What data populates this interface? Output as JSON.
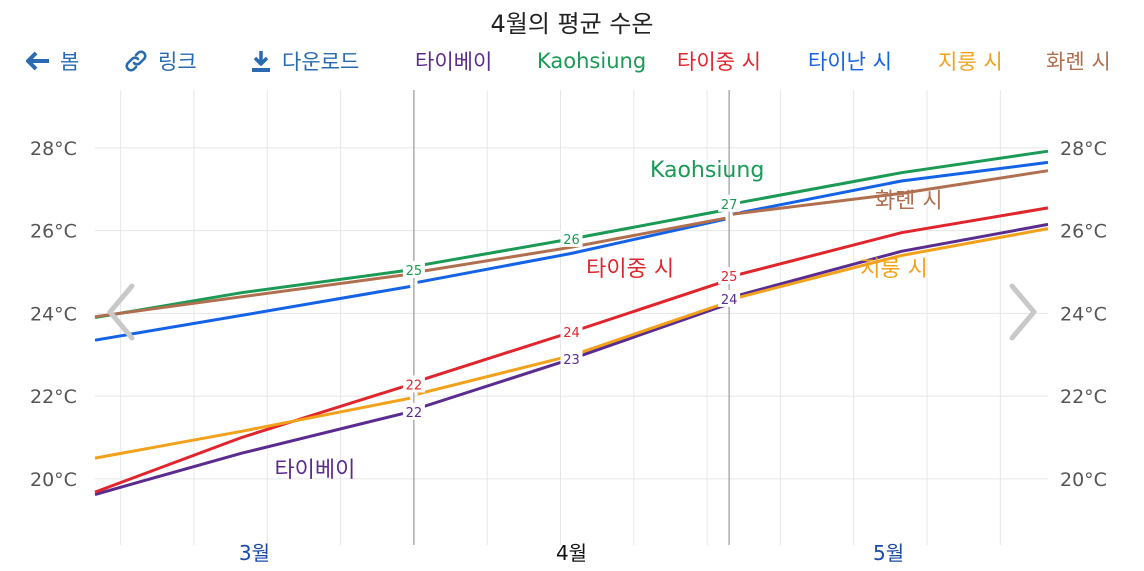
{
  "title": "4월의 평균 수온",
  "toolbar": {
    "back_label": "봄",
    "link_label": "링크",
    "download_label": "다운로드",
    "back_icon": "arrow-left-icon",
    "link_icon": "link-icon",
    "download_icon": "download-icon"
  },
  "nav": {
    "prev_icon": "chevron-left-icon",
    "next_icon": "chevron-right-icon"
  },
  "chart_data": {
    "type": "line",
    "title": "4월의 평균 수온",
    "y_unit": "°C",
    "ylim": [
      18.4,
      29.4
    ],
    "yticks": [
      20,
      22,
      24,
      26,
      28
    ],
    "ytick_labels": [
      "20°C",
      "22°C",
      "24°C",
      "26°C",
      "28°C"
    ],
    "months": [
      {
        "label": "3월",
        "current": false
      },
      {
        "label": "4월",
        "current": true
      },
      {
        "label": "5월",
        "current": false
      }
    ],
    "x_domain": [
      0,
      13
    ],
    "segment_breaks": [
      4.35,
      8.65
    ],
    "grid": true,
    "legend_placement": "top",
    "series": [
      {
        "name": "타이베이",
        "color": "#5b2c8f",
        "x": [
          0,
          2,
          4.3,
          4.4,
          6.5,
          8.6,
          8.7,
          11,
          13
        ],
        "y": [
          19.62,
          20.62,
          21.62,
          21.7,
          22.9,
          24.2,
          24.4,
          25.5,
          26.15
        ],
        "points": [
          {
            "x": 4.35,
            "y": 21.62,
            "label": "22"
          },
          {
            "x": 6.5,
            "y": 22.9,
            "label": "23"
          },
          {
            "x": 8.65,
            "y": 24.35,
            "label": "24"
          }
        ],
        "name_anchor": {
          "x": 3.0,
          "y": 20.05
        }
      },
      {
        "name": "Kaohsiung",
        "color": "#1a9a55",
        "x": [
          0,
          2,
          4.3,
          4.4,
          6.5,
          8.6,
          8.7,
          11,
          13
        ],
        "y": [
          23.9,
          24.5,
          25.05,
          25.15,
          25.8,
          26.5,
          26.65,
          27.4,
          27.92
        ],
        "points": [
          {
            "x": 4.35,
            "y": 25.05,
            "label": "25"
          },
          {
            "x": 6.5,
            "y": 25.8,
            "label": "26"
          },
          {
            "x": 8.65,
            "y": 26.65,
            "label": "27"
          }
        ],
        "name_anchor": {
          "x": 8.35,
          "y": 27.3
        }
      },
      {
        "name": "타이중 시",
        "color": "#e0252c",
        "x": [
          0,
          2,
          4.3,
          4.4,
          6.5,
          8.6,
          8.7,
          11,
          13
        ],
        "y": [
          19.68,
          21.0,
          22.28,
          22.36,
          23.55,
          24.78,
          24.9,
          25.95,
          26.55
        ],
        "points": [
          {
            "x": 4.35,
            "y": 22.28,
            "label": "22"
          },
          {
            "x": 6.5,
            "y": 23.55,
            "label": "24"
          },
          {
            "x": 8.65,
            "y": 24.9,
            "label": "25"
          }
        ],
        "name_anchor": {
          "x": 7.3,
          "y": 24.9
        }
      },
      {
        "name": "타이난 시",
        "color": "#1463e6",
        "x": [
          0,
          2,
          4.3,
          4.4,
          6.5,
          8.6,
          8.7,
          11,
          13
        ],
        "y": [
          23.35,
          23.95,
          24.65,
          24.75,
          25.45,
          26.28,
          26.4,
          27.2,
          27.65
        ],
        "points": [],
        "name_anchor": null
      },
      {
        "name": "지룽 시",
        "color": "#f2a11b",
        "x": [
          0,
          2,
          4.3,
          4.4,
          6.5,
          8.6,
          8.7,
          11,
          13
        ],
        "y": [
          20.5,
          21.15,
          21.95,
          22.05,
          22.98,
          24.25,
          24.35,
          25.4,
          26.05
        ],
        "points": [],
        "name_anchor": {
          "x": 10.9,
          "y": 24.9
        }
      },
      {
        "name": "화롄 시",
        "color": "#b07050",
        "x": [
          0,
          2,
          4.3,
          4.4,
          6.5,
          8.6,
          8.7,
          11,
          13
        ],
        "y": [
          23.92,
          24.4,
          24.95,
          25.0,
          25.6,
          26.3,
          26.4,
          26.9,
          27.45
        ],
        "points": [],
        "name_anchor": {
          "x": 11.1,
          "y": 26.55
        }
      }
    ]
  }
}
